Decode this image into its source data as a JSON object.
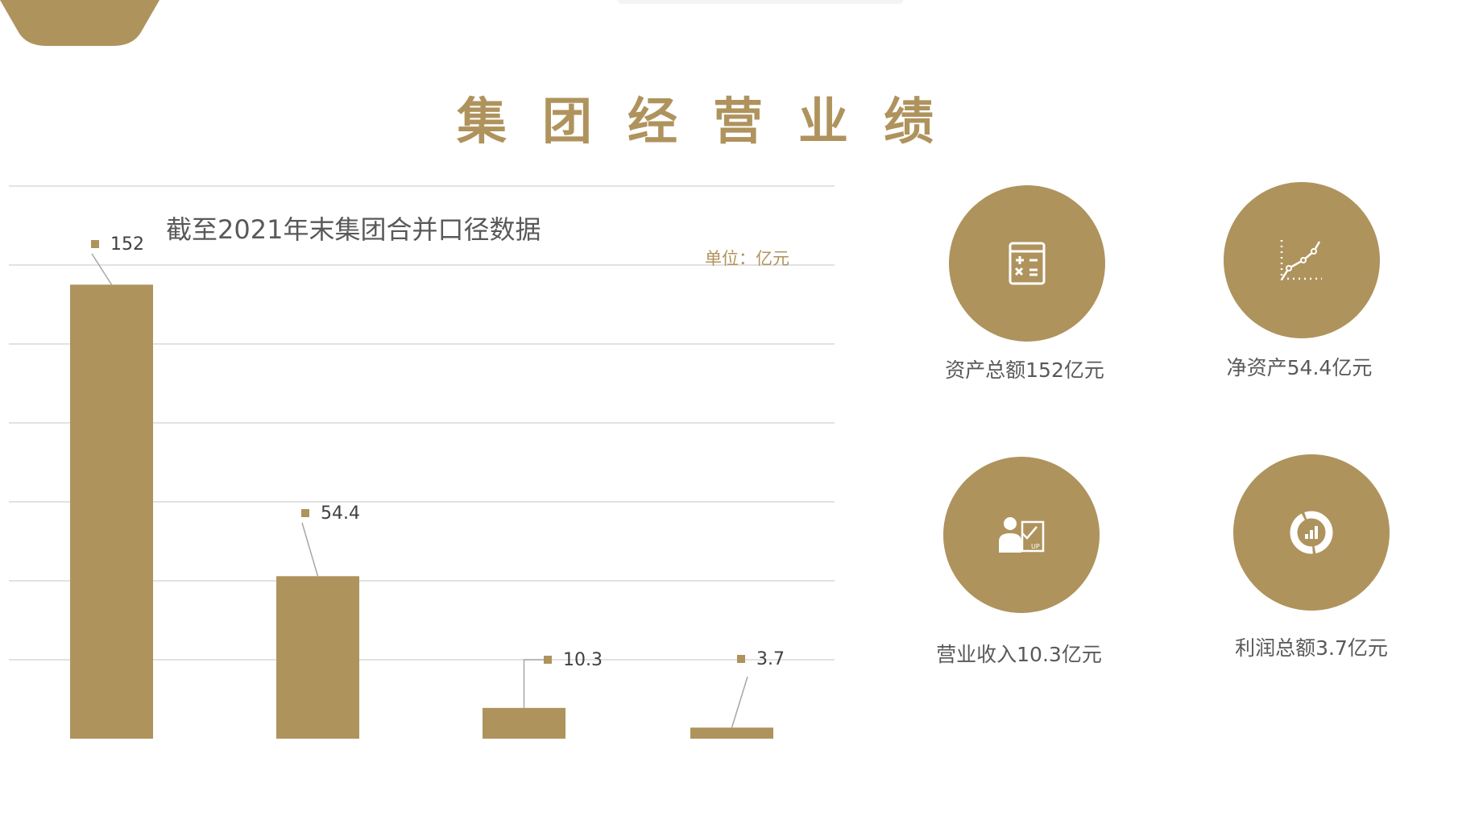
{
  "page_title": "集团经营业绩",
  "colors": {
    "accent": "#af935d",
    "text": "#595959",
    "grid": "#d9d9d9"
  },
  "chart_data": {
    "type": "bar",
    "title": "截至2021年末集团合并口径数据",
    "unit_label": "单位：亿元",
    "categories": [
      "资产总额",
      "净资产",
      "营业收入",
      "利润总额"
    ],
    "values": [
      152,
      54.4,
      10.3,
      3.7
    ],
    "data_labels": [
      "152",
      "54.4",
      "10.3",
      "3.7"
    ],
    "ylim": [
      0,
      185
    ],
    "grid": true,
    "axes_visible": false
  },
  "metrics": [
    {
      "label": "资产总额152亿元",
      "icon": "calculator-icon"
    },
    {
      "label": "净资产54.4亿元",
      "icon": "line-chart-icon"
    },
    {
      "label": "营业收入10.3亿元",
      "icon": "presenter-up-icon"
    },
    {
      "label": "利润总额3.7亿元",
      "icon": "donut-chart-icon"
    }
  ]
}
